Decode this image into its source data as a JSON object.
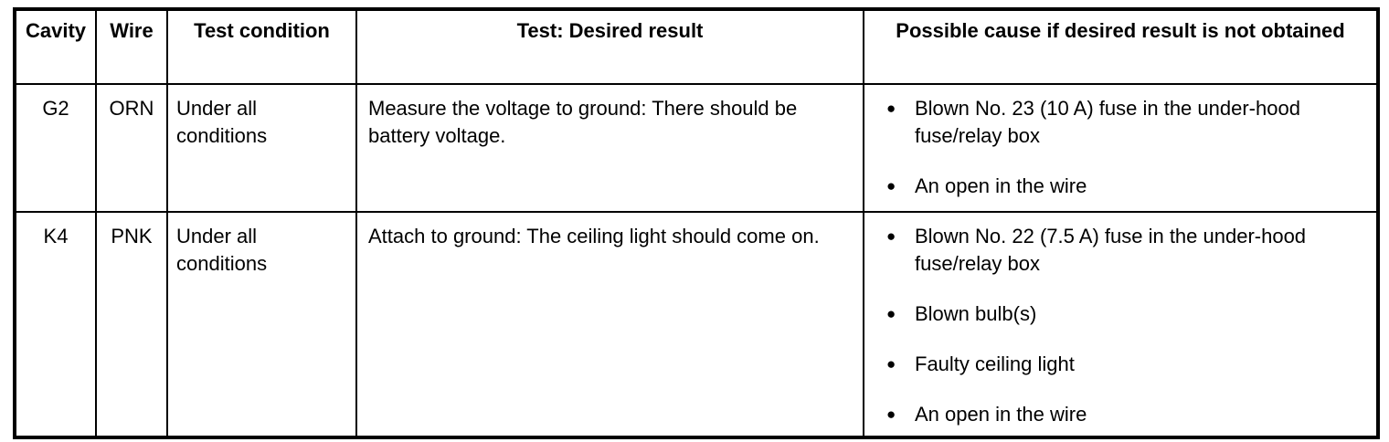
{
  "icons": {
    "bullet": "●"
  },
  "table": {
    "headers": {
      "cavity": "Cavity",
      "wire": "Wire",
      "test_condition": "Test condition",
      "desired_result": "Test: Desired result",
      "possible_cause": "Possible cause if desired result is not obtained"
    },
    "rows": [
      {
        "cavity": "G2",
        "wire": "ORN",
        "test_condition": "Under all conditions",
        "desired_result": "Measure the voltage to ground: There should be battery voltage.",
        "possible_causes": [
          "Blown No. 23 (10 A) fuse in the under-hood fuse/relay box",
          "An open in the wire"
        ]
      },
      {
        "cavity": "K4",
        "wire": "PNK",
        "test_condition": "Under all conditions",
        "desired_result": "Attach to ground: The ceiling light should come on.",
        "possible_causes": [
          "Blown No. 22 (7.5 A) fuse in the under-hood fuse/relay box",
          "Blown bulb(s)",
          "Faulty ceiling light",
          "An open in the wire"
        ]
      }
    ]
  }
}
